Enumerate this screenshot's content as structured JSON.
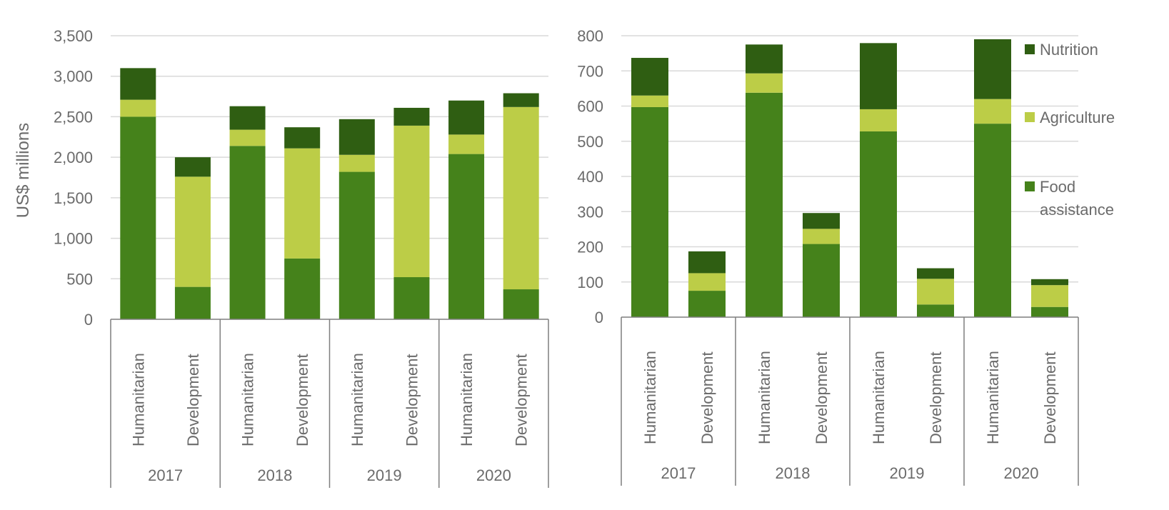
{
  "colors": {
    "nutrition": "#2f5e12",
    "agriculture": "#bccd47",
    "food_assistance": "#45821b"
  },
  "legend": [
    {
      "key": "nutrition",
      "label": "Nutrition"
    },
    {
      "key": "agriculture",
      "label": "Agriculture"
    },
    {
      "key": "food_assistance",
      "lines": [
        "Food",
        "assistance"
      ]
    }
  ],
  "chart_data": [
    {
      "type": "bar",
      "stacked": true,
      "ylabel": "US$ millions",
      "ylim": [
        0,
        3500
      ],
      "yticks": [
        0,
        500,
        1000,
        1500,
        2000,
        2500,
        3000,
        3500
      ],
      "ytick_labels": [
        "0",
        "500",
        "1,000",
        "1,500",
        "2,000",
        "2,500",
        "3,000",
        "3,500"
      ],
      "grid": true,
      "groups": [
        "2017",
        "2018",
        "2019",
        "2020"
      ],
      "categories": [
        "Humanitarian",
        "Development",
        "Humanitarian",
        "Development",
        "Humanitarian",
        "Development",
        "Humanitarian",
        "Development"
      ],
      "series": [
        {
          "name": "Food assistance",
          "key": "food_assistance",
          "values": [
            2500,
            400,
            2140,
            750,
            1820,
            520,
            2040,
            370
          ]
        },
        {
          "name": "Agriculture",
          "key": "agriculture",
          "values": [
            210,
            1360,
            200,
            1360,
            210,
            1870,
            240,
            2250
          ]
        },
        {
          "name": "Nutrition",
          "key": "nutrition",
          "values": [
            390,
            240,
            290,
            260,
            440,
            220,
            420,
            170
          ]
        }
      ]
    },
    {
      "type": "bar",
      "stacked": true,
      "ylim": [
        0,
        800
      ],
      "yticks": [
        0,
        100,
        200,
        300,
        400,
        500,
        600,
        700,
        800
      ],
      "ytick_labels": [
        "0",
        "100",
        "200",
        "300",
        "400",
        "500",
        "600",
        "700",
        "800"
      ],
      "grid": true,
      "legend_position": "right",
      "groups": [
        "2017",
        "2018",
        "2019",
        "2020"
      ],
      "categories": [
        "Humanitarian",
        "Development",
        "Humanitarian",
        "Development",
        "Humanitarian",
        "Development",
        "Humanitarian",
        "Development"
      ],
      "series": [
        {
          "name": "Food assistance",
          "key": "food_assistance",
          "values": [
            597,
            75,
            638,
            208,
            528,
            36,
            550,
            29
          ]
        },
        {
          "name": "Agriculture",
          "key": "agriculture",
          "values": [
            33,
            50,
            55,
            43,
            63,
            73,
            70,
            62
          ]
        },
        {
          "name": "Nutrition",
          "key": "nutrition",
          "values": [
            107,
            62,
            82,
            45,
            188,
            30,
            170,
            17
          ]
        }
      ]
    }
  ]
}
